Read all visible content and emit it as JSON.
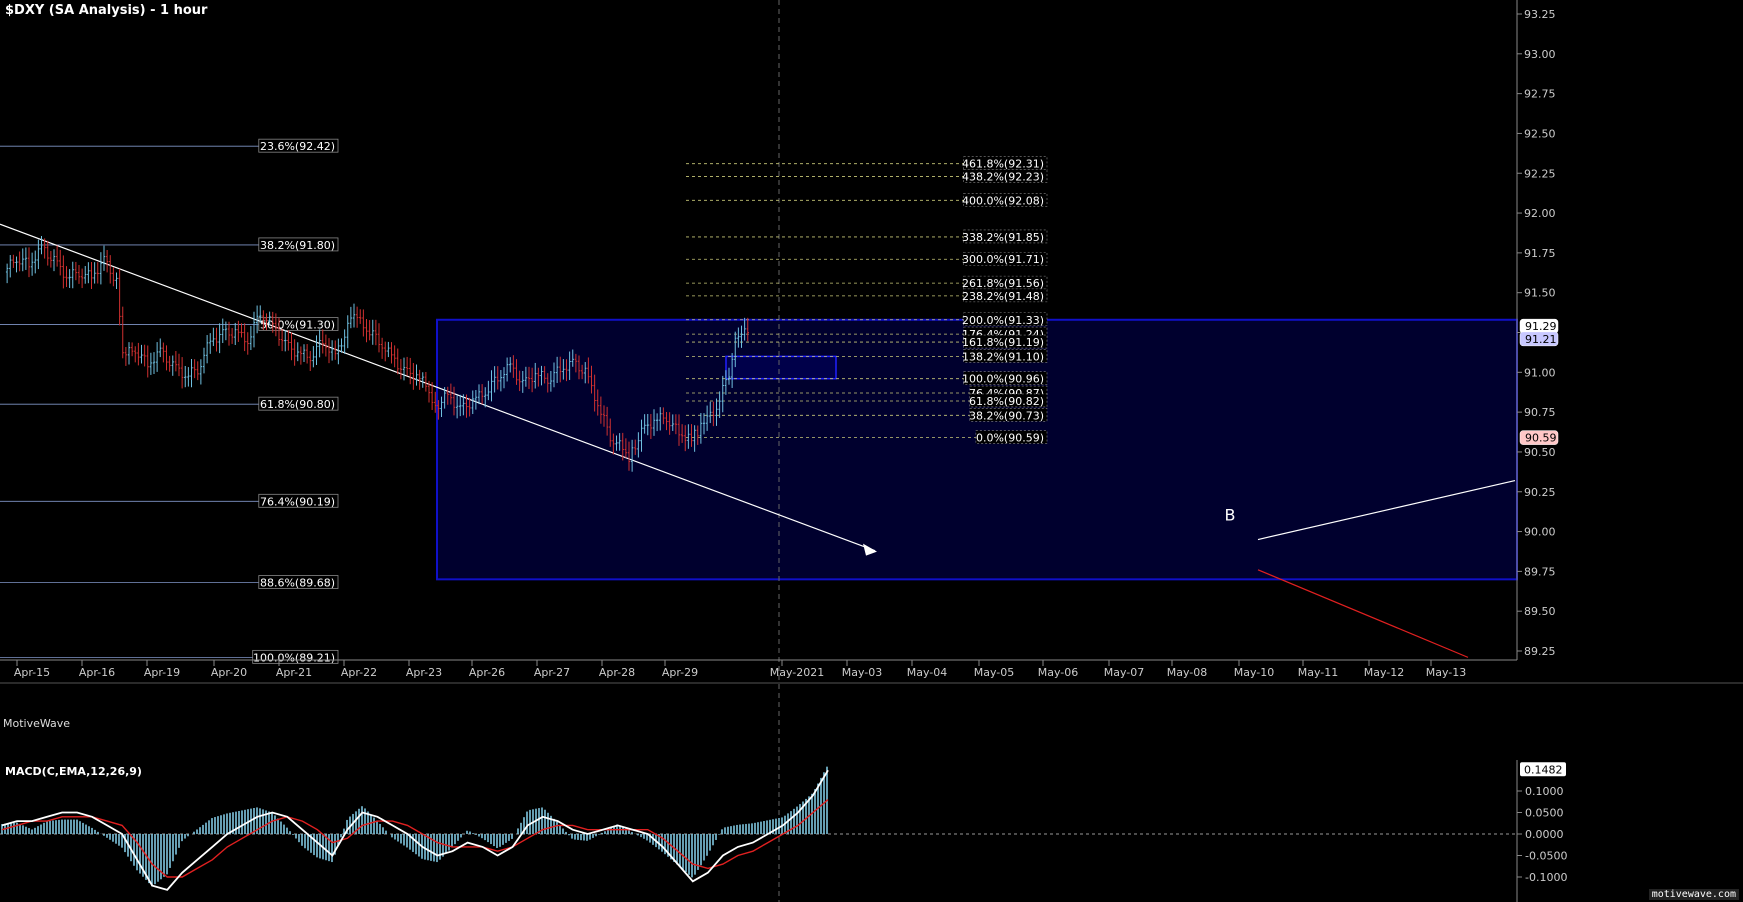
{
  "header": {
    "title": "$DXY (SA Analysis) - 1 hour"
  },
  "watermarks": {
    "top": "MotiveWave",
    "bottom": "motivewave.com"
  },
  "macd": {
    "title": "MACD(C,EMA,12,26,9)",
    "last": "0.1482",
    "ticks": [
      "0.1000",
      "0.0500",
      "0.0000",
      "-0.0500",
      "-0.1000"
    ]
  },
  "colors": {
    "background": "#000000",
    "zone_fill": "#00002e",
    "zone_border": "#1010c8",
    "fib_left": "#8096c8",
    "fib_right": "#c8c878",
    "macd_hist": "#7fc6e0",
    "macd_line": "#ffffff",
    "signal_line": "#e02020",
    "trend": "#ffffff",
    "bear_candle": "#d03030",
    "bull_candle": "#70c0e0"
  },
  "chart_data": {
    "type": "candlestick",
    "title": "$DXY (SA Analysis) - 1 hour",
    "ylim": [
      89.18,
      93.3
    ],
    "y_ticks": [
      "93.25",
      "93.00",
      "92.75",
      "92.50",
      "92.25",
      "92.00",
      "91.75",
      "91.50",
      "91.25",
      "91.00",
      "90.75",
      "90.50",
      "90.25",
      "90.00",
      "89.75",
      "89.50",
      "89.25"
    ],
    "x_labels": [
      "Apr-15",
      "Apr-16",
      "Apr-19",
      "Apr-20",
      "Apr-21",
      "Apr-22",
      "Apr-23",
      "Apr-26",
      "Apr-27",
      "Apr-28",
      "Apr-29",
      "May-2021",
      "May-03",
      "May-04",
      "May-05",
      "May-06",
      "May-07",
      "May-08",
      "May-10",
      "May-11",
      "May-12",
      "May-13"
    ],
    "price_path": [
      [
        0,
        91.63
      ],
      [
        2,
        91.72
      ],
      [
        4,
        91.68
      ],
      [
        6,
        91.78
      ],
      [
        8,
        91.7
      ],
      [
        10,
        91.6
      ],
      [
        12,
        91.63
      ],
      [
        14,
        91.6
      ],
      [
        16,
        91.7
      ],
      [
        18,
        91.57
      ],
      [
        19,
        91.1
      ],
      [
        21,
        91.15
      ],
      [
        23,
        91.05
      ],
      [
        25,
        91.13
      ],
      [
        27,
        91.04
      ],
      [
        29,
        90.98
      ],
      [
        31,
        91.02
      ],
      [
        33,
        91.2
      ],
      [
        35,
        91.24
      ],
      [
        37,
        91.25
      ],
      [
        39,
        91.2
      ],
      [
        41,
        91.38
      ],
      [
        43,
        91.3
      ],
      [
        45,
        91.17
      ],
      [
        47,
        91.12
      ],
      [
        49,
        91.1
      ],
      [
        51,
        91.2
      ],
      [
        53,
        91.1
      ],
      [
        55,
        91.28
      ],
      [
        56,
        91.35
      ],
      [
        58,
        91.28
      ],
      [
        60,
        91.2
      ],
      [
        62,
        91.1
      ],
      [
        64,
        91.0
      ],
      [
        66,
        90.98
      ],
      [
        68,
        90.9
      ],
      [
        69,
        90.78
      ],
      [
        71,
        90.86
      ],
      [
        73,
        90.76
      ],
      [
        75,
        90.82
      ],
      [
        77,
        90.88
      ],
      [
        79,
        90.97
      ],
      [
        81,
        91.04
      ],
      [
        83,
        90.92
      ],
      [
        85,
        90.99
      ],
      [
        87,
        90.96
      ],
      [
        89,
        91.02
      ],
      [
        91,
        91.06
      ],
      [
        93,
        91.0
      ],
      [
        95,
        90.8
      ],
      [
        97,
        90.6
      ],
      [
        99,
        90.52
      ],
      [
        100,
        90.47
      ],
      [
        102,
        90.62
      ],
      [
        104,
        90.7
      ],
      [
        106,
        90.72
      ],
      [
        108,
        90.62
      ],
      [
        109,
        90.6
      ],
      [
        110,
        90.6
      ],
      [
        111,
        90.62
      ],
      [
        112,
        90.68
      ],
      [
        114,
        90.78
      ],
      [
        116,
        91.0
      ],
      [
        117,
        91.22
      ],
      [
        118,
        91.26
      ],
      [
        119,
        91.28
      ]
    ],
    "annotations": [
      {
        "label": "B",
        "x": 1230,
        "y": 90.07
      },
      {
        "label": "trendline_down",
        "from": [
          0,
          91.93
        ],
        "to": [
          875,
          89.88
        ]
      },
      {
        "label": "trendline_up",
        "from": [
          1258,
          89.95
        ],
        "to": [
          1515,
          90.32
        ]
      },
      {
        "label": "red_line",
        "from": [
          1258,
          89.76
        ],
        "to": [
          1468,
          89.21
        ]
      }
    ],
    "fib_left": [
      {
        "label": "23.6%(92.42)",
        "value": 92.42
      },
      {
        "label": "38.2%(91.80)",
        "value": 91.8
      },
      {
        "label": "50.0%(91.30)",
        "value": 91.3
      },
      {
        "label": "61.8%(90.80)",
        "value": 90.8
      },
      {
        "label": "76.4%(90.19)",
        "value": 90.19
      },
      {
        "label": "88.6%(89.68)",
        "value": 89.68
      },
      {
        "label": "100.0%(89.21)",
        "value": 89.21
      }
    ],
    "fib_right": [
      {
        "label": "461.8%(92.31)",
        "value": 92.31
      },
      {
        "label": "438.2%(92.23)",
        "value": 92.23
      },
      {
        "label": "400.0%(92.08)",
        "value": 92.08
      },
      {
        "label": "338.2%(91.85)",
        "value": 91.85
      },
      {
        "label": "300.0%(91.71)",
        "value": 91.71
      },
      {
        "label": "261.8%(91.56)",
        "value": 91.56
      },
      {
        "label": "238.2%(91.48)",
        "value": 91.48
      },
      {
        "label": "200.0%(91.33)",
        "value": 91.33
      },
      {
        "label": "176.4%(91.24)",
        "value": 91.24
      },
      {
        "label": "161.8%(91.19)",
        "value": 91.19
      },
      {
        "label": "138.2%(91.10)",
        "value": 91.1
      },
      {
        "label": "100.0%(90.96)",
        "value": 90.96
      },
      {
        "label": "76.4%(90.87)",
        "value": 90.87
      },
      {
        "label": "61.8%(90.82)",
        "value": 90.82
      },
      {
        "label": "38.2%(90.73)",
        "value": 90.73
      },
      {
        "label": "0.0%(90.59)",
        "value": 90.59
      }
    ],
    "zone_big": {
      "top": 91.33,
      "bottom": 89.7
    },
    "zone_small": {
      "top": 91.1,
      "bottom": 90.96
    },
    "price_tags": [
      {
        "label": "91.29",
        "value": 91.29,
        "color": "#ffffff"
      },
      {
        "label": "91.21",
        "value": 91.21,
        "color": "#c8c8ff"
      },
      {
        "label": "90.59",
        "value": 90.59,
        "color": "#ffc8c8"
      }
    ],
    "macd_series": [
      0.02,
      0.03,
      0.03,
      0.04,
      0.05,
      0.05,
      0.04,
      0.02,
      0.0,
      -0.06,
      -0.12,
      -0.13,
      -0.09,
      -0.06,
      -0.03,
      0.0,
      0.02,
      0.04,
      0.05,
      0.04,
      0.01,
      -0.02,
      -0.05,
      0.01,
      0.05,
      0.04,
      0.02,
      0.0,
      -0.03,
      -0.05,
      -0.04,
      -0.02,
      -0.03,
      -0.05,
      -0.03,
      0.02,
      0.04,
      0.03,
      0.01,
      0.0,
      0.01,
      0.02,
      0.01,
      0.0,
      -0.03,
      -0.07,
      -0.11,
      -0.09,
      -0.05,
      -0.03,
      -0.02,
      0.0,
      0.02,
      0.05,
      0.09,
      0.1482
    ],
    "signal_series": [
      0.01,
      0.02,
      0.03,
      0.03,
      0.04,
      0.04,
      0.04,
      0.03,
      0.02,
      -0.02,
      -0.07,
      -0.1,
      -0.1,
      -0.08,
      -0.06,
      -0.03,
      -0.01,
      0.01,
      0.03,
      0.04,
      0.03,
      0.01,
      -0.02,
      -0.01,
      0.02,
      0.03,
      0.03,
      0.02,
      0.0,
      -0.02,
      -0.03,
      -0.03,
      -0.03,
      -0.04,
      -0.03,
      -0.01,
      0.01,
      0.02,
      0.02,
      0.01,
      0.01,
      0.01,
      0.01,
      0.01,
      -0.01,
      -0.04,
      -0.07,
      -0.08,
      -0.07,
      -0.05,
      -0.04,
      -0.02,
      0.0,
      0.02,
      0.05,
      0.08
    ]
  }
}
